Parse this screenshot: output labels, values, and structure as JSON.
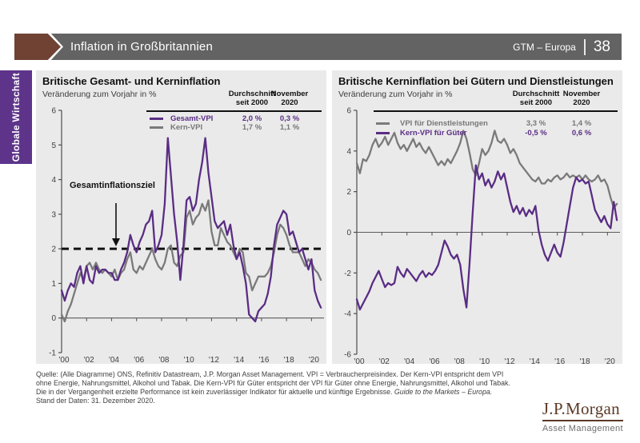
{
  "header": {
    "title": "Inflation in Großbritannien",
    "edition": "GTM – Europa",
    "page": "38"
  },
  "sidebar": {
    "label": "Globale Wirtschaft"
  },
  "colors": {
    "accent_purple": "#5A2D84",
    "line_gray": "#7A7A7A",
    "panel_bg": "#EAEAEA",
    "header_bar": "#636363",
    "sidebar_purple": "#5E348B",
    "chevron_brown": "#6F4233",
    "logo_brown": "#5B3A27",
    "target_line": "#111111"
  },
  "legend_stats": [
    {
      "col1_header": "Durchschnitt\nseit 2000",
      "col2_header": "November\n2020",
      "rows": [
        {
          "avg": "2,0 %",
          "nov": "0,3 %"
        },
        {
          "avg": "1,7 %",
          "nov": "1,1 %"
        }
      ]
    },
    {
      "col1_header": "Durchschnitt\nseit 2000",
      "col2_header": "November\n2020",
      "rows": [
        {
          "avg": "3,3 %",
          "nov": "1,4 %"
        },
        {
          "avg": "-0,5 %",
          "nov": "0,6 %"
        }
      ]
    }
  ],
  "chart_data": [
    {
      "type": "line",
      "title": "Britische Gesamt- und Kerninflation",
      "subtitle": "Veränderung zum Vorjahr in %",
      "x_start": 2000,
      "x_step": 0.25,
      "xlim": [
        2000,
        2021
      ],
      "ylim": [
        -1,
        6
      ],
      "yticks": [
        6,
        5,
        4,
        3,
        2,
        1,
        0,
        -1
      ],
      "xtick_years": [
        2000,
        2002,
        2004,
        2006,
        2008,
        2010,
        2012,
        2014,
        2016,
        2018,
        2020
      ],
      "xtick_labels": [
        "'00",
        "'02",
        "'04",
        "'06",
        "'08",
        "'10",
        "'12",
        "'14",
        "'16",
        "'18",
        "'20"
      ],
      "grid": false,
      "legend_position": "top-right",
      "target_line": {
        "value": 2,
        "label": "Gesamtinflationsziel"
      },
      "series": [
        {
          "name": "Gesamt-VPI",
          "color": "#5A2D84",
          "values": [
            0.8,
            0.5,
            0.8,
            1.0,
            0.9,
            1.3,
            1.5,
            1.0,
            1.5,
            1.1,
            1.0,
            1.5,
            1.3,
            1.4,
            1.4,
            1.3,
            1.3,
            1.1,
            1.1,
            1.4,
            1.6,
            1.9,
            2.4,
            2.1,
            1.9,
            2.2,
            2.4,
            2.7,
            2.8,
            3.1,
            1.9,
            2.1,
            2.4,
            3.3,
            5.2,
            4.1,
            3.0,
            2.2,
            1.1,
            2.1,
            3.4,
            3.5,
            3.1,
            3.3,
            4.0,
            4.5,
            5.2,
            4.2,
            3.5,
            2.8,
            2.6,
            2.7,
            2.8,
            2.4,
            2.7,
            2.1,
            1.7,
            1.9,
            1.5,
            1.0,
            0.1,
            0.0,
            -0.1,
            0.2,
            0.3,
            0.4,
            0.7,
            1.2,
            2.1,
            2.7,
            2.9,
            3.1,
            3.0,
            2.4,
            2.5,
            2.2,
            1.9,
            2.0,
            1.7,
            1.4,
            1.7,
            0.8,
            0.5,
            0.3
          ]
        },
        {
          "name": "Kern-VPI",
          "color": "#7A7A7A",
          "values": [
            0.1,
            -0.1,
            0.2,
            0.4,
            0.7,
            1.0,
            1.3,
            1.1,
            1.5,
            1.6,
            1.4,
            1.6,
            1.4,
            1.3,
            1.4,
            1.3,
            1.2,
            1.4,
            1.1,
            1.3,
            1.4,
            1.7,
            1.9,
            1.4,
            1.3,
            1.5,
            1.4,
            1.6,
            1.8,
            2.0,
            1.7,
            1.5,
            1.4,
            1.6,
            2.0,
            2.1,
            1.6,
            1.5,
            1.8,
            1.9,
            2.9,
            3.1,
            2.7,
            2.9,
            3.0,
            3.3,
            3.1,
            3.4,
            2.5,
            2.1,
            2.1,
            2.6,
            2.4,
            2.2,
            2.1,
            1.9,
            1.7,
            2.0,
            1.9,
            1.3,
            1.2,
            0.8,
            1.0,
            1.2,
            1.2,
            1.2,
            1.3,
            1.5,
            1.9,
            2.4,
            2.7,
            2.6,
            2.4,
            2.1,
            1.9,
            1.9,
            1.9,
            1.7,
            1.5,
            1.7,
            1.6,
            1.4,
            1.3,
            1.1
          ]
        }
      ]
    },
    {
      "type": "line",
      "title": "Britische Kerninflation bei Gütern und Dienstleistungen",
      "subtitle": "Veränderung zum Vorjahr in %",
      "x_start": 2000,
      "x_step": 0.25,
      "xlim": [
        2000,
        2021
      ],
      "ylim": [
        -6,
        6
      ],
      "yticks": [
        6,
        4,
        2,
        0,
        -2,
        -4,
        -6
      ],
      "xtick_years": [
        2000,
        2002,
        2004,
        2006,
        2008,
        2010,
        2012,
        2014,
        2016,
        2018,
        2020
      ],
      "xtick_labels": [
        "'00",
        "'02",
        "'04",
        "'06",
        "'08",
        "'10",
        "'12",
        "'14",
        "'16",
        "'18",
        "'20"
      ],
      "grid": false,
      "legend_position": "top-right",
      "series": [
        {
          "name": "VPI für Dienstleistungen",
          "color": "#7A7A7A",
          "values": [
            3.4,
            2.9,
            3.6,
            3.5,
            3.8,
            4.3,
            4.6,
            4.2,
            4.4,
            4.7,
            4.3,
            4.6,
            4.9,
            4.4,
            4.1,
            4.3,
            4.0,
            4.3,
            4.6,
            4.2,
            4.4,
            4.1,
            3.9,
            4.2,
            3.9,
            3.6,
            3.3,
            3.5,
            3.3,
            3.6,
            3.4,
            3.7,
            4.0,
            4.4,
            5.0,
            4.6,
            3.9,
            3.1,
            2.8,
            3.4,
            4.1,
            3.8,
            4.0,
            4.4,
            5.0,
            4.5,
            4.4,
            4.6,
            4.3,
            3.9,
            4.1,
            3.8,
            3.4,
            3.2,
            3.0,
            2.8,
            2.6,
            2.5,
            2.7,
            2.4,
            2.4,
            2.6,
            2.5,
            2.7,
            2.8,
            2.6,
            2.7,
            2.9,
            2.7,
            2.8,
            2.7,
            2.8,
            2.6,
            2.8,
            2.6,
            2.5,
            2.6,
            2.8,
            2.5,
            2.6,
            2.3,
            1.7,
            1.2,
            1.4
          ]
        },
        {
          "name": "Kern-VPI für Güter",
          "color": "#5A2D84",
          "values": [
            -3.3,
            -3.8,
            -3.5,
            -3.2,
            -2.9,
            -2.5,
            -2.2,
            -1.9,
            -2.3,
            -2.7,
            -2.5,
            -2.6,
            -2.5,
            -1.7,
            -2.0,
            -2.2,
            -1.8,
            -2.0,
            -2.2,
            -2.4,
            -2.1,
            -1.9,
            -2.2,
            -2.0,
            -2.1,
            -1.9,
            -1.6,
            -1.0,
            -0.4,
            -0.7,
            -1.1,
            -1.3,
            -1.1,
            -1.6,
            -2.8,
            -3.7,
            -1.5,
            1.0,
            3.3,
            2.6,
            2.9,
            2.3,
            2.6,
            2.2,
            2.5,
            3.0,
            2.6,
            2.9,
            2.2,
            1.5,
            1.0,
            1.3,
            0.9,
            1.2,
            0.8,
            1.1,
            0.9,
            1.3,
            0.1,
            -0.6,
            -1.1,
            -1.4,
            -1.0,
            -0.6,
            -1.0,
            -1.2,
            -0.5,
            0.4,
            1.3,
            2.2,
            2.7,
            2.5,
            2.6,
            2.4,
            2.5,
            1.8,
            1.1,
            0.8,
            0.5,
            0.8,
            0.4,
            0.2,
            1.5,
            0.6
          ]
        }
      ]
    }
  ],
  "footer": {
    "line1": "Quelle: (Alle Diagramme) ONS, Refinitiv Datastream, J.P. Morgan Asset Management. VPI = Verbraucherpreisindex. Der Kern-VPI entspricht dem VPI",
    "line2": "ohne Energie, Nahrungsmittel, Alkohol und Tabak. Die Kern-VPI für Güter entspricht der VPI für Güter ohne Energie, Nahrungsmittel, Alkohol und Tabak.",
    "line3": "Die in der Vergangenheit erzielte Performance ist kein zuverlässiger Indikator für aktuelle und künftige Ergebnisse. ",
    "line3_italic": "Guide to the Markets – Europa.",
    "line4": "Stand der Daten: 31. Dezember 2020."
  },
  "logo": {
    "name": "J.P.Morgan",
    "subtitle": "Asset Management"
  }
}
